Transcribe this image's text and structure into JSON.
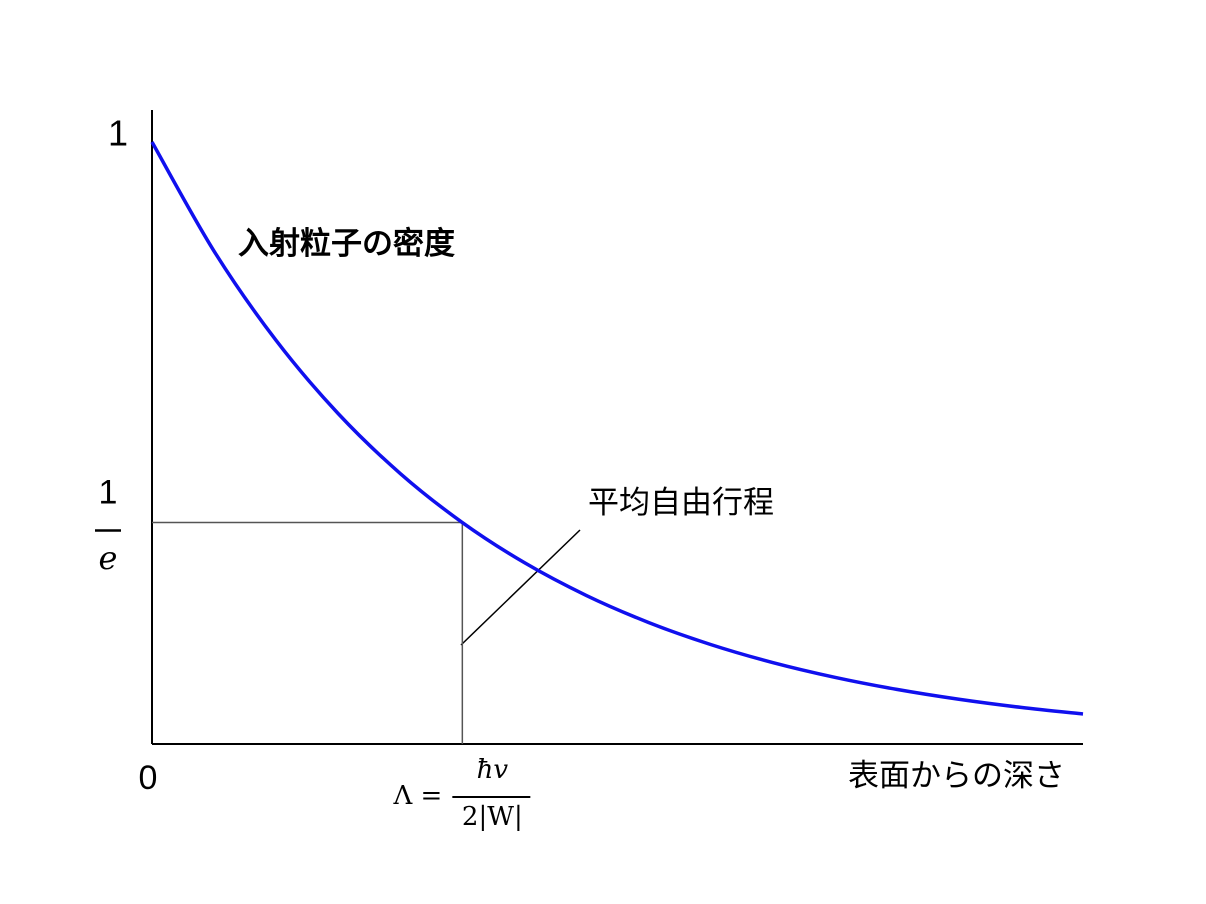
{
  "chart_data": {
    "type": "line",
    "xlabel": "表面からの深さ",
    "annotation": "平均自由行程",
    "x": [
      0,
      0.2,
      0.4,
      0.6,
      0.8,
      1,
      1.2,
      1.4,
      1.6,
      1.8,
      2,
      2.2,
      2.4,
      2.6,
      2.8,
      3
    ],
    "series": [
      {
        "name": "入射粒子の密度",
        "color": "#1010ee",
        "values": [
          1,
          0.8187,
          0.6703,
          0.5488,
          0.4493,
          0.3679,
          0.3012,
          0.2466,
          0.2019,
          0.1653,
          0.1353,
          0.1108,
          0.0907,
          0.0743,
          0.0608,
          0.0498
        ]
      }
    ],
    "xlim": [
      0,
      3
    ],
    "ylim": [
      0,
      1
    ],
    "xticks": [
      0,
      {
        "value": 1,
        "label": {
          "prefix": "Λ =",
          "numerator": "ħv",
          "denominator": "2|W|"
        }
      }
    ],
    "yticks": [
      1,
      {
        "value": 0.3679,
        "label": {
          "numerator": "1",
          "denominator": "e"
        }
      }
    ],
    "grid": false
  }
}
